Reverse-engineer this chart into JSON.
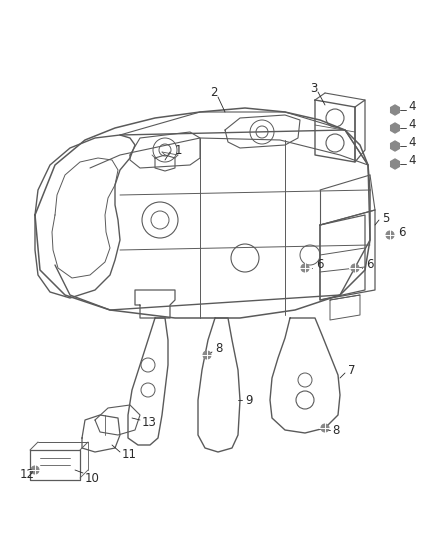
{
  "background_color": "#ffffff",
  "line_color": "#5a5a5a",
  "label_color": "#2a2a2a",
  "fig_width": 4.38,
  "fig_height": 5.33,
  "dpi": 100,
  "img_b64": ""
}
